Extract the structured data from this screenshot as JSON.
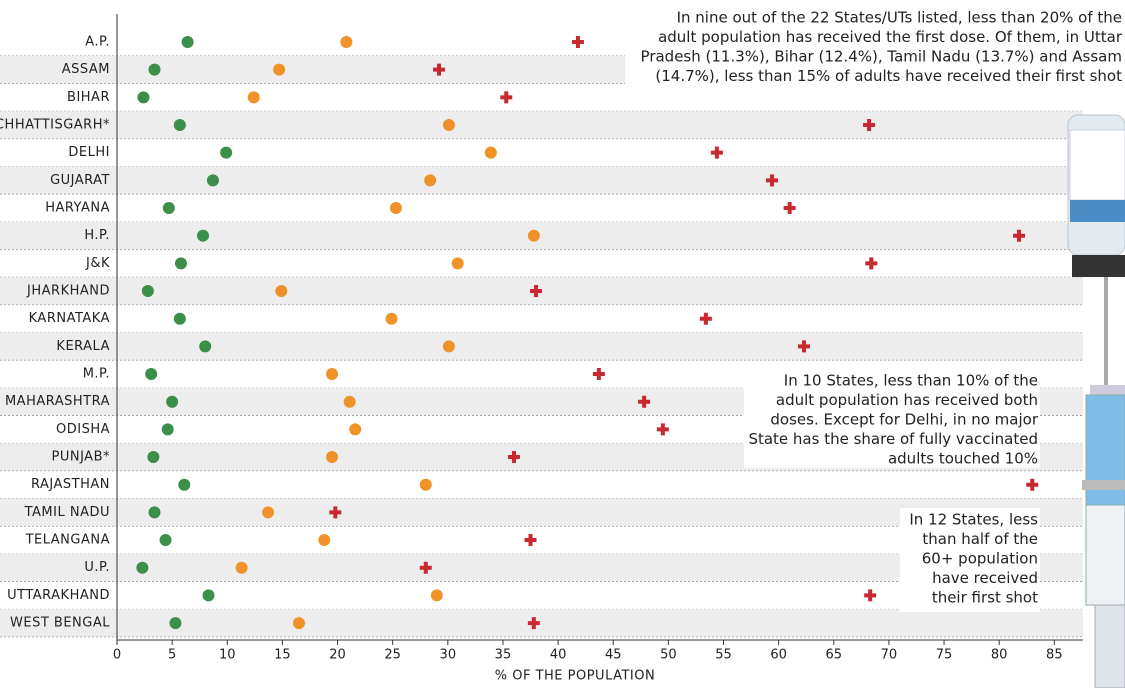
{
  "chart_data": {
    "type": "dotplot",
    "categories": [
      "A.P.",
      "ASSAM",
      "BIHAR",
      "CHHATTISGARH*",
      "DELHI",
      "GUJARAT",
      "HARYANA",
      "H.P.",
      "J&K",
      "JHARKHAND",
      "KARNATAKA",
      "KERALA",
      "M.P.",
      "MAHARASHTRA",
      "ODISHA",
      "PUNJAB*",
      "RAJASTHAN",
      "TAMIL NADU",
      "TELANGANA",
      "U.P.",
      "UTTARAKHAND",
      "WEST BENGAL"
    ],
    "series": [
      {
        "color": "#3b8f48",
        "marker": "circle",
        "values": [
          6.4,
          3.4,
          2.4,
          5.7,
          9.9,
          8.7,
          4.7,
          7.8,
          5.8,
          2.8,
          5.7,
          8.0,
          3.1,
          5.0,
          4.6,
          3.3,
          6.1,
          3.4,
          4.4,
          2.3,
          8.3,
          5.3
        ]
      },
      {
        "color": "#f0922a",
        "marker": "circle",
        "values": [
          20.8,
          14.7,
          12.4,
          30.1,
          33.9,
          28.4,
          25.3,
          37.8,
          30.9,
          14.9,
          24.9,
          30.1,
          19.5,
          21.1,
          21.6,
          19.5,
          28.0,
          13.7,
          18.8,
          11.3,
          29.0,
          16.5
        ]
      },
      {
        "color": "#c8282e",
        "marker": "cross",
        "values": [
          41.8,
          29.2,
          35.3,
          68.2,
          54.4,
          59.4,
          61.0,
          81.8,
          68.4,
          38.0,
          53.4,
          62.3,
          43.7,
          47.8,
          49.5,
          36.0,
          83.0,
          19.8,
          37.5,
          28.0,
          68.3,
          37.8
        ]
      }
    ],
    "xlim": [
      0,
      87.6
    ],
    "xticks": [
      0,
      5,
      10,
      15,
      20,
      25,
      30,
      35,
      40,
      45,
      50,
      55,
      60,
      65,
      70,
      75,
      80,
      85
    ],
    "x_label": "% OF THE POPULATION",
    "annotations": [
      {
        "lines": [
          "In nine out of the 22 States/UTs listed, less than 20% of the",
          "adult population has received the first dose. Of them, in Uttar",
          "Pradesh (11.3%), Bihar (12.4%), Tamil Nadu (13.7%) and Assam",
          "(14.7%), less than 15% of adults have received their first shot"
        ]
      },
      {
        "lines": [
          "In 10 States, less than 10% of the",
          "adult population has received both",
          "doses. Except for Delhi, in no major",
          "State has the share of fully vaccinated",
          "adults touched 10%"
        ]
      },
      {
        "lines": [
          "In 12 States, less",
          "than half of the",
          "60+ population",
          "have received",
          "their first shot"
        ]
      }
    ]
  }
}
